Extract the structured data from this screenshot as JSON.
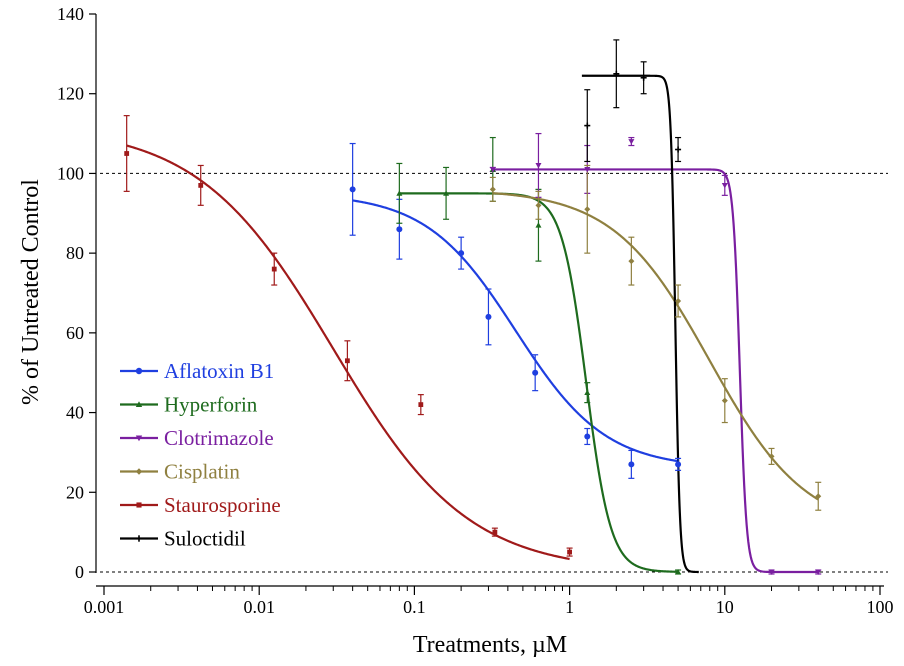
{
  "chart_data": {
    "type": "line",
    "title": "",
    "xlabel": "Treatments, µM",
    "ylabel": "%  of Untreated Control",
    "xscale": "log",
    "xlim": [
      0.001,
      100
    ],
    "ylim": [
      0,
      140
    ],
    "xticks": [
      0.001,
      0.01,
      0.1,
      1,
      10,
      100
    ],
    "xtick_labels": [
      "0.001",
      "0.01",
      "0.1",
      "1",
      "10",
      "100"
    ],
    "yticks": [
      0,
      20,
      40,
      60,
      80,
      100,
      120,
      140
    ],
    "ytick_labels": [
      "0",
      "20",
      "40",
      "60",
      "80",
      "100",
      "120",
      "140"
    ],
    "reference_lines": [
      100,
      0
    ],
    "reference_line_style": "dotted",
    "grid": false,
    "legend_position": "left-middle",
    "series": [
      {
        "name": "Aflatoxin B1",
        "color": "#1f3fe0",
        "marker": "circle",
        "points": [
          {
            "x": 0.04,
            "y": 96,
            "err": 11.5
          },
          {
            "x": 0.08,
            "y": 86,
            "err": 7.5
          },
          {
            "x": 0.2,
            "y": 80,
            "err": 4
          },
          {
            "x": 0.3,
            "y": 64,
            "err": 7
          },
          {
            "x": 0.6,
            "y": 50,
            "err": 4.5
          },
          {
            "x": 1.3,
            "y": 34,
            "err": 2
          },
          {
            "x": 2.5,
            "y": 27,
            "err": 3.5
          },
          {
            "x": 5,
            "y": 27,
            "err": 1.5
          }
        ],
        "curve": {
          "top": 95,
          "bottom": 26,
          "ec50": 0.45,
          "hill": 1.5,
          "xmin": 0.04,
          "xmax": 5
        }
      },
      {
        "name": "Hyperforin",
        "color": "#1e6b1e",
        "marker": "triangle-up",
        "points": [
          {
            "x": 0.08,
            "y": 95,
            "err": 7.5
          },
          {
            "x": 0.16,
            "y": 95,
            "err": 6.5
          },
          {
            "x": 0.32,
            "y": 101,
            "err": 8
          },
          {
            "x": 0.63,
            "y": 87,
            "err": 9
          },
          {
            "x": 1.3,
            "y": 45,
            "err": 2.5
          },
          {
            "x": 5,
            "y": 0,
            "err": 0.5
          }
        ],
        "curve": {
          "top": 95,
          "bottom": 0,
          "ec50": 1.28,
          "hill": 5.5,
          "xmin": 0.08,
          "xmax": 5
        }
      },
      {
        "name": "Clotrimazole",
        "color": "#7a1fa0",
        "marker": "triangle-down",
        "points": [
          {
            "x": 0.32,
            "y": 101,
            "err": 0.5
          },
          {
            "x": 0.63,
            "y": 102,
            "err": 8
          },
          {
            "x": 1.3,
            "y": 101,
            "err": 6
          },
          {
            "x": 2.5,
            "y": 108,
            "err": 1
          },
          {
            "x": 10,
            "y": 97,
            "err": 2.5
          },
          {
            "x": 20,
            "y": 0,
            "err": 0.5
          },
          {
            "x": 40,
            "y": 0,
            "err": 0.5
          }
        ],
        "curve": {
          "top": 101,
          "bottom": 0,
          "ec50": 12.5,
          "hill": 20,
          "xmin": 0.32,
          "xmax": 40
        }
      },
      {
        "name": "Cisplatin",
        "color": "#8f8040",
        "marker": "diamond",
        "points": [
          {
            "x": 0.32,
            "y": 96,
            "err": 3
          },
          {
            "x": 0.63,
            "y": 92,
            "err": 3.5
          },
          {
            "x": 1.3,
            "y": 91,
            "err": 11
          },
          {
            "x": 2.5,
            "y": 78,
            "err": 6
          },
          {
            "x": 5,
            "y": 68,
            "err": 4
          },
          {
            "x": 10,
            "y": 43,
            "err": 5.5
          },
          {
            "x": 20,
            "y": 29,
            "err": 2
          },
          {
            "x": 40,
            "y": 19,
            "err": 3.5
          }
        ],
        "curve": {
          "top": 96,
          "bottom": 10,
          "ec50": 8,
          "hill": 1.4,
          "xmin": 0.32,
          "xmax": 40
        }
      },
      {
        "name": "Staurosporine",
        "color": "#a01a1a",
        "marker": "square",
        "points": [
          {
            "x": 0.0014,
            "y": 105,
            "err": 9.5
          },
          {
            "x": 0.0042,
            "y": 97,
            "err": 5
          },
          {
            "x": 0.0125,
            "y": 76,
            "err": 4
          },
          {
            "x": 0.037,
            "y": 53,
            "err": 5
          },
          {
            "x": 0.11,
            "y": 42,
            "err": 2.5
          },
          {
            "x": 0.33,
            "y": 10,
            "err": 1
          },
          {
            "x": 1,
            "y": 5,
            "err": 1
          }
        ],
        "curve": {
          "top": 112,
          "bottom": 0,
          "ec50": 0.03,
          "hill": 1.0,
          "xmin": 0.0014,
          "xmax": 1
        }
      },
      {
        "name": "Suloctidil",
        "color": "#000000",
        "marker": "cross",
        "points": [
          {
            "x": 1.3,
            "y": 112,
            "err": 9
          },
          {
            "x": 2,
            "y": 125,
            "err": 8.5
          },
          {
            "x": 3,
            "y": 124,
            "err": 4
          },
          {
            "x": 5,
            "y": 106,
            "err": 3
          }
        ],
        "curve": {
          "top": 124.5,
          "bottom": 0,
          "ec50": 4.8,
          "hill": 30,
          "xmin": 1.2,
          "xmax": 6.8
        }
      }
    ]
  }
}
